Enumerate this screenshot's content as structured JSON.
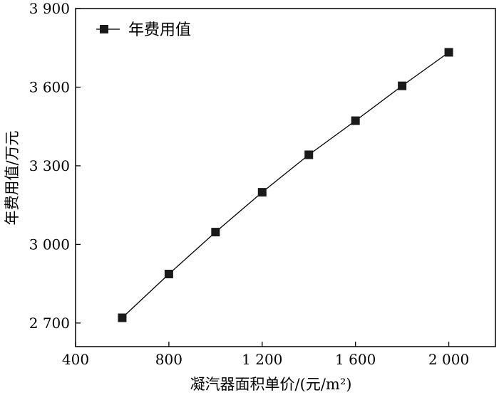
{
  "chart_data": {
    "type": "line",
    "title": "",
    "xlabel": "凝汽器面积单价/(元/m²)",
    "ylabel": "年费用值/万元",
    "xlim": [
      400,
      2200
    ],
    "ylim": [
      2610,
      3900
    ],
    "x_ticks": [
      400,
      800,
      1200,
      1600,
      2000
    ],
    "x_tick_labels": [
      "400",
      "800",
      "1 200",
      "1 600",
      "2 000"
    ],
    "y_ticks": [
      2700,
      3000,
      3300,
      3600,
      3900
    ],
    "y_tick_labels": [
      "2 700",
      "3 000",
      "3 300",
      "3 600",
      "3 900"
    ],
    "grid": false,
    "legend_position": "top-left",
    "series": [
      {
        "name": "年费用值",
        "marker": "square",
        "color": "#1a1a1a",
        "x": [
          600,
          800,
          1000,
          1200,
          1400,
          1600,
          1800,
          2000
        ],
        "y": [
          2720,
          2887,
          3047,
          3199,
          3342,
          3472,
          3605,
          3733
        ]
      }
    ]
  }
}
